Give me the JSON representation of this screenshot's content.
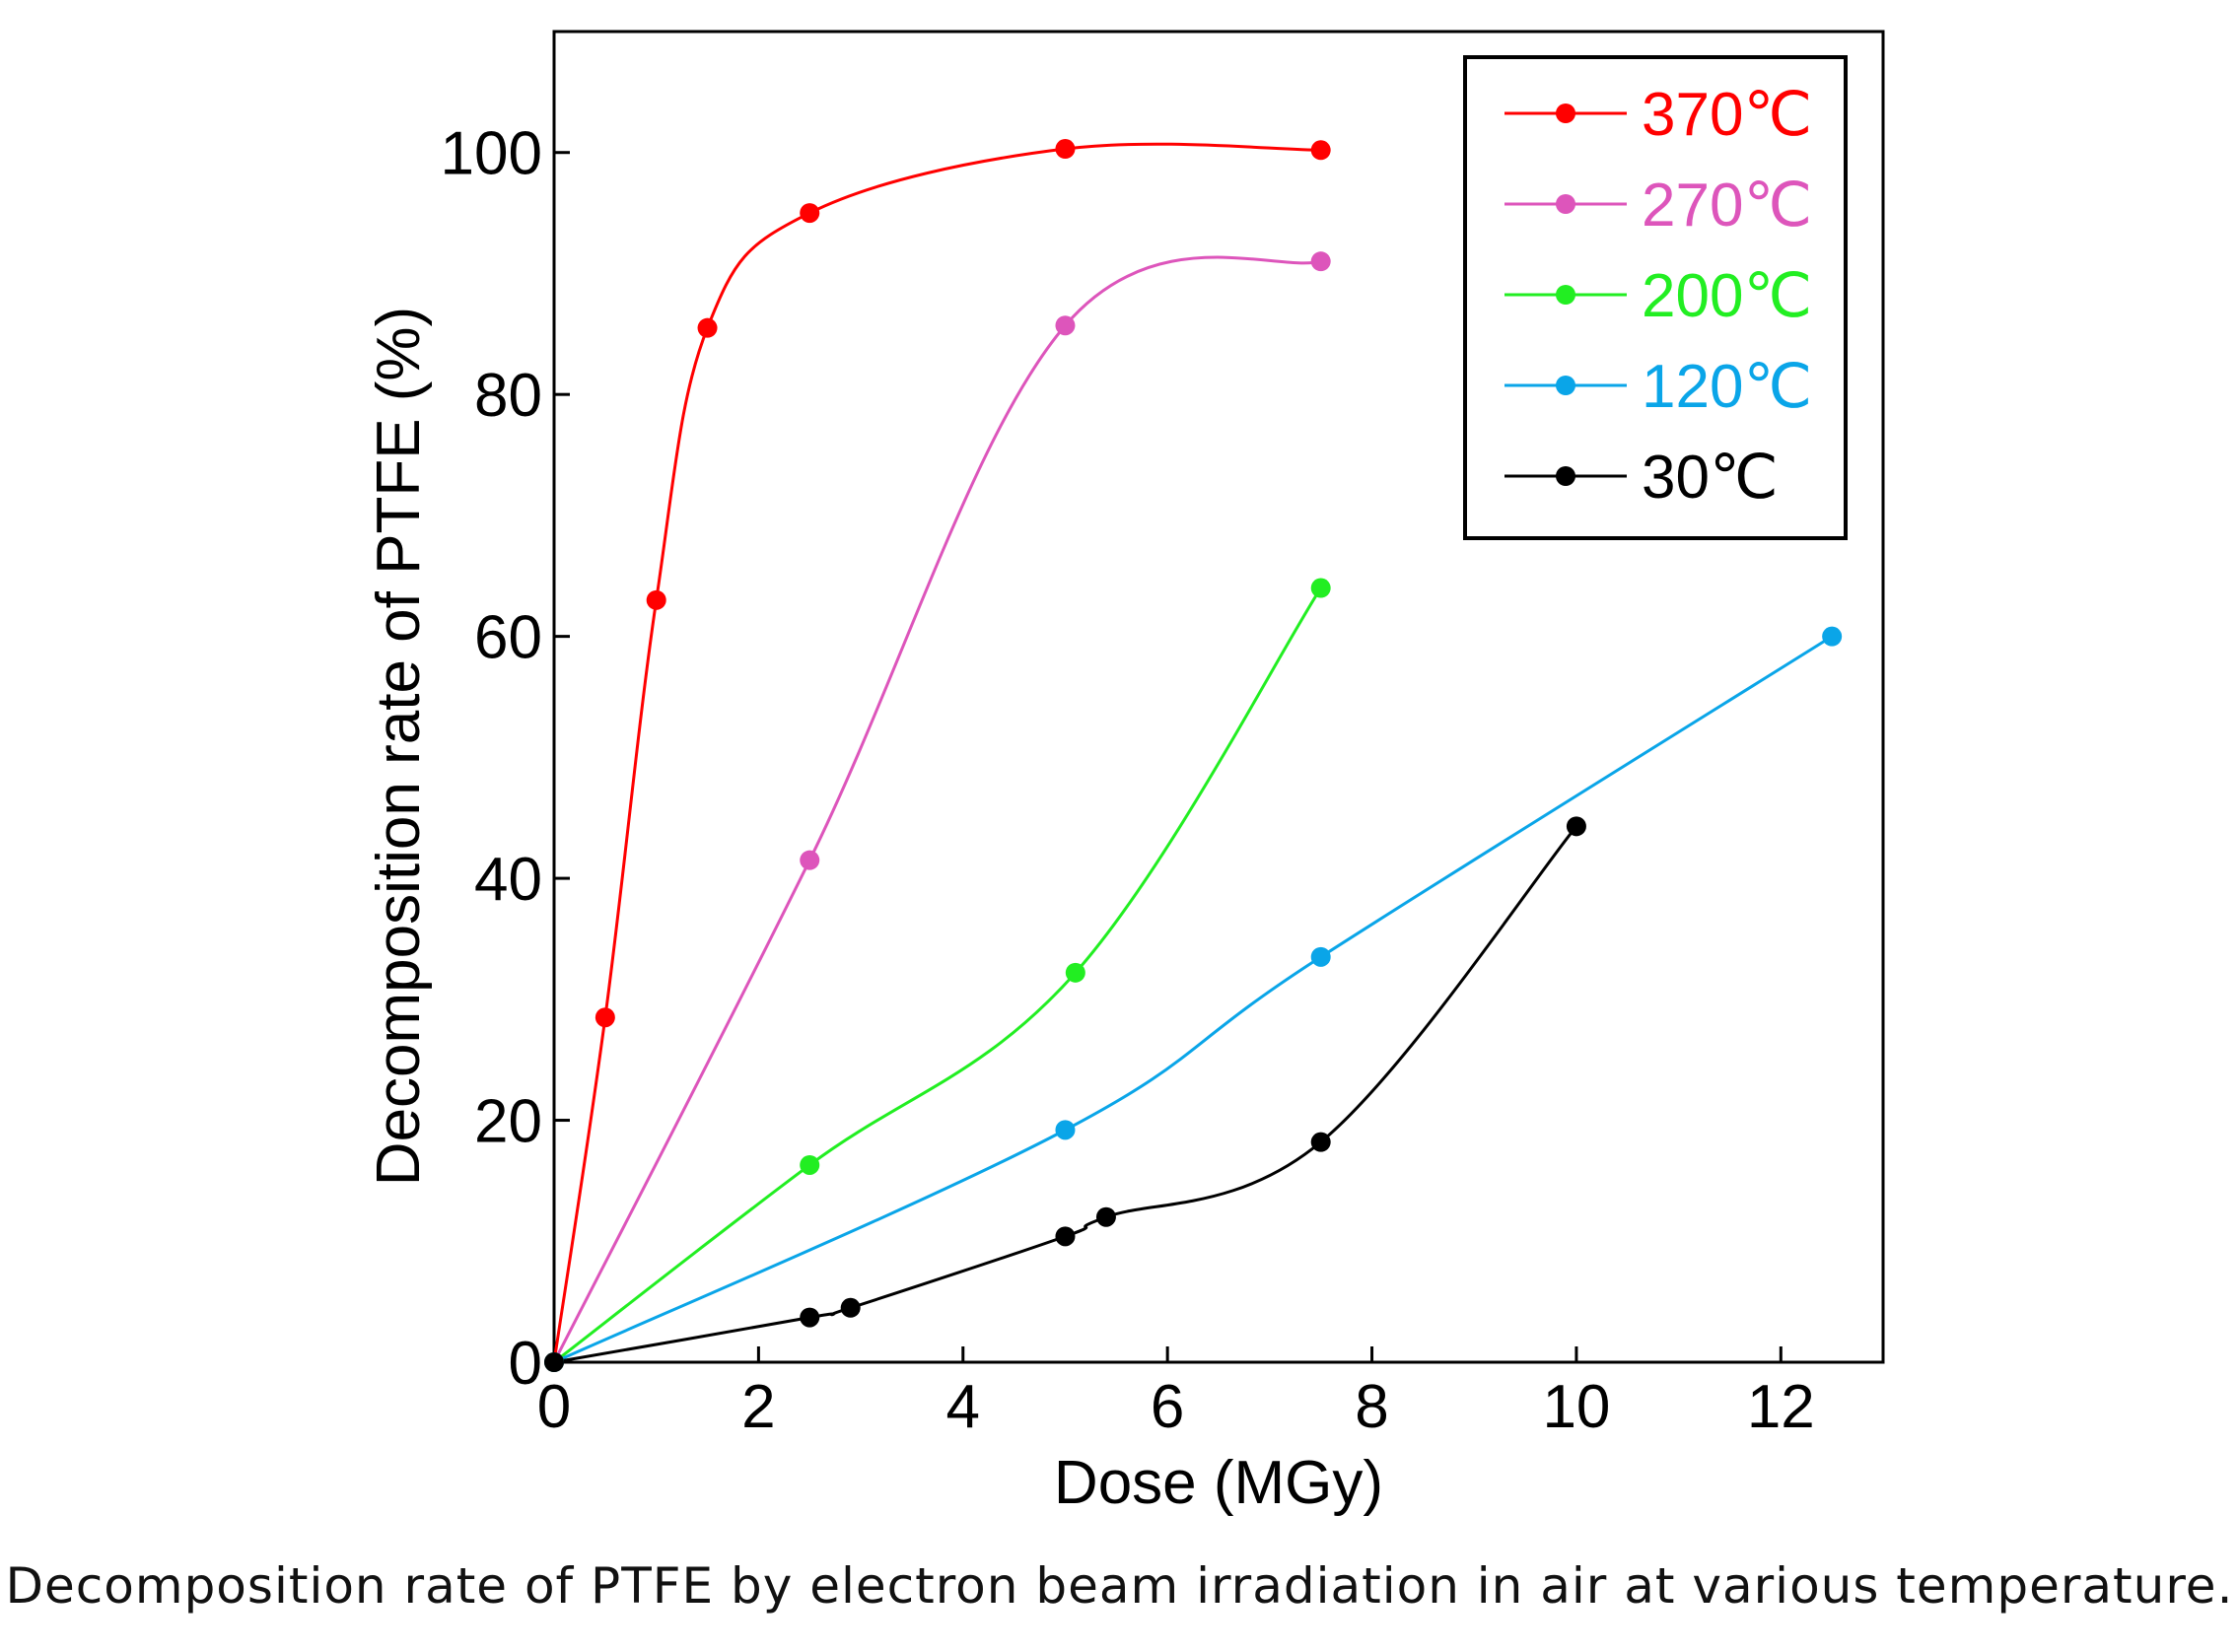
{
  "caption": "Decomposition rate of PTFE by electron beam irradiation in air at various temperature.",
  "chart_data": {
    "type": "line",
    "xlabel": "Dose (MGy)",
    "ylabel": "Decomposition rate of PTFE (%)",
    "xlim": [
      0,
      13
    ],
    "ylim": [
      0,
      110
    ],
    "xticks": [
      0,
      2,
      4,
      6,
      8,
      10,
      12
    ],
    "yticks": [
      0,
      20,
      40,
      60,
      80,
      100
    ],
    "xtick_labels": [
      "0",
      "2",
      "4",
      "6",
      "8",
      "10",
      "12"
    ],
    "ytick_labels": [
      "0",
      "20",
      "40",
      "60",
      "80",
      "100"
    ],
    "grid": false,
    "legend_position": "top-right",
    "series": [
      {
        "name": "370℃",
        "color": "#ff0000",
        "x": [
          0,
          0.5,
          1.0,
          1.5,
          2.5,
          5.0,
          7.5
        ],
        "y": [
          0,
          28.5,
          63.0,
          85.5,
          95.0,
          100.3,
          100.2
        ]
      },
      {
        "name": "270℃",
        "color": "#dd55bb",
        "x": [
          0,
          2.5,
          5.0,
          7.5
        ],
        "y": [
          0,
          41.5,
          85.7,
          91.0
        ]
      },
      {
        "name": "200℃",
        "color": "#22ee22",
        "x": [
          0,
          2.5,
          5.1,
          7.5
        ],
        "y": [
          0,
          16.3,
          32.2,
          64.0
        ]
      },
      {
        "name": "120℃",
        "color": "#0aa5e8",
        "x": [
          0,
          5.0,
          7.5,
          12.5
        ],
        "y": [
          0,
          19.2,
          33.5,
          60.0
        ]
      },
      {
        "name": "30℃",
        "color": "#000000",
        "x": [
          0,
          2.5,
          2.9,
          5.0,
          5.4,
          7.5,
          10.0
        ],
        "y": [
          0,
          3.7,
          4.5,
          10.4,
          12.0,
          18.2,
          44.3
        ]
      }
    ]
  }
}
